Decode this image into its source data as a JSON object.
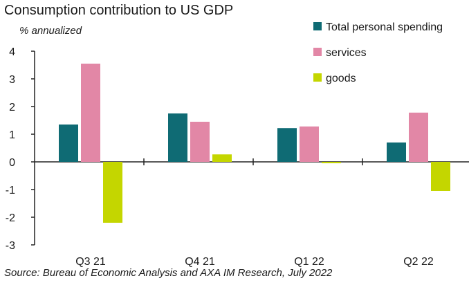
{
  "title": "Consumption contribution to US GDP",
  "y_unit": "% annualized",
  "source": "Source: Bureau of Economic Analysis and AXA IM Research, July 2022",
  "chart_data": {
    "type": "bar",
    "title": "Consumption contribution to US GDP",
    "ylabel": "% annualized",
    "xlabel": "",
    "categories": [
      "Q3 21",
      "Q4 21",
      "Q1 22",
      "Q2 22"
    ],
    "series": [
      {
        "name": "Total personal spending",
        "color": "#0f6b74",
        "values": [
          1.35,
          1.75,
          1.22,
          0.7
        ]
      },
      {
        "name": "services",
        "color": "#e287a6",
        "values": [
          3.55,
          1.45,
          1.28,
          1.78
        ]
      },
      {
        "name": "goods",
        "color": "#c4d600",
        "values": [
          -2.2,
          0.27,
          -0.05,
          -1.05
        ]
      }
    ],
    "ylim": [
      -3,
      4
    ],
    "yticks": [
      4,
      3,
      2,
      1,
      0,
      -1,
      -2,
      -3
    ],
    "grid": false,
    "legend_position": "top-right"
  }
}
